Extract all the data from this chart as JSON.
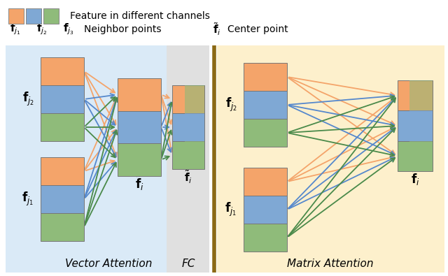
{
  "fig_width": 6.4,
  "fig_height": 3.95,
  "dpi": 100,
  "bg_color": "#ffffff",
  "left_panel_bg": "#daeaf7",
  "fc_panel_bg": "#e0e0e0",
  "right_panel_bg": "#fdf0cc",
  "divider_color": "#8B6914",
  "block_colors": [
    "#f4a46a",
    "#7fa8d4",
    "#8fbb7a"
  ],
  "arrow_colors": [
    "#f4a46a",
    "#5588cc",
    "#4a8a4a"
  ],
  "left_title": "Vector Attention",
  "fc_title": "FC",
  "right_title": "Matrix Attention",
  "legend_text1": "Feature in different channels",
  "legend_neighbor": "Neighbor points",
  "legend_center": "Center point"
}
